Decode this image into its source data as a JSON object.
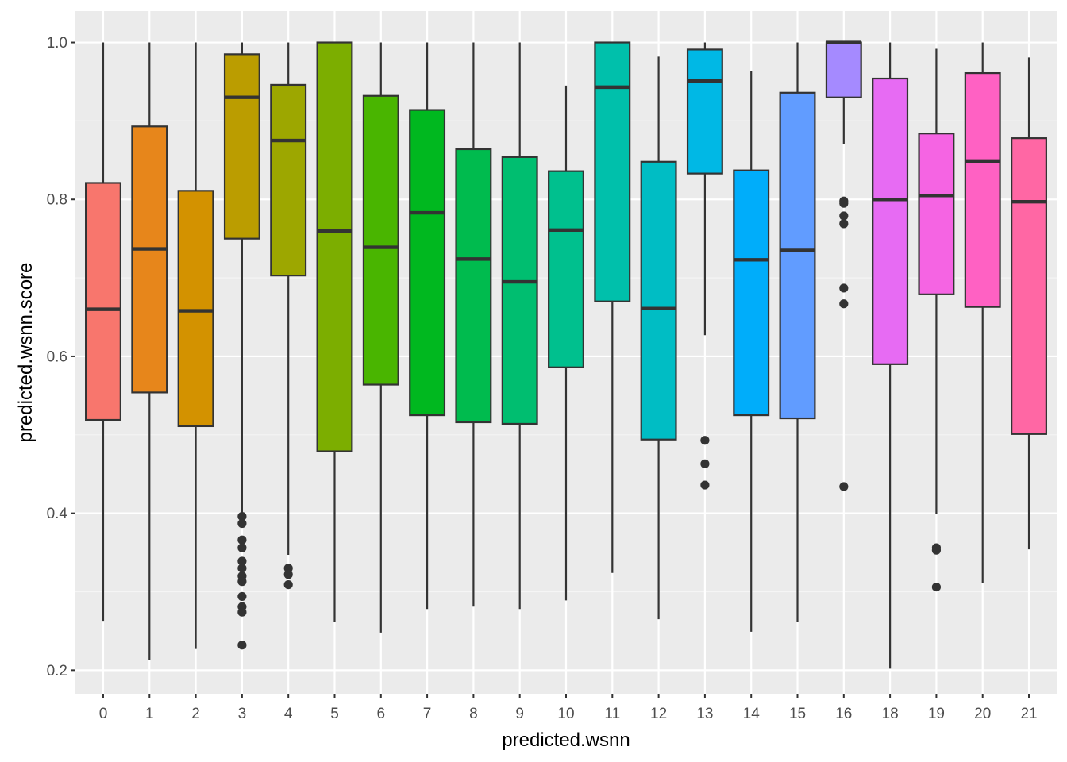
{
  "chart_data": {
    "type": "boxplot",
    "title": "",
    "xlabel": "predicted.wsnn",
    "ylabel": "predicted.wsnn.score",
    "ylim": [
      0.17,
      1.04
    ],
    "yticks": [
      0.2,
      0.4,
      0.6,
      0.8,
      1.0
    ],
    "ytick_labels": [
      "0.2",
      "0.4",
      "0.6",
      "0.8",
      "1.0"
    ],
    "grid": true,
    "legend": "none",
    "categories": [
      "0",
      "1",
      "2",
      "3",
      "4",
      "5",
      "6",
      "7",
      "8",
      "9",
      "10",
      "11",
      "12",
      "13",
      "14",
      "15",
      "16",
      "18",
      "19",
      "20",
      "21"
    ],
    "boxes": [
      {
        "label": "0",
        "color": "#F8766D",
        "lower_whisker": 0.263,
        "q1": 0.519,
        "median": 0.66,
        "q3": 0.821,
        "upper_whisker": 1.0,
        "outliers": []
      },
      {
        "label": "1",
        "color": "#E7861B",
        "lower_whisker": 0.213,
        "q1": 0.554,
        "median": 0.737,
        "q3": 0.893,
        "upper_whisker": 1.0,
        "outliers": []
      },
      {
        "label": "2",
        "color": "#D39200",
        "lower_whisker": 0.227,
        "q1": 0.511,
        "median": 0.658,
        "q3": 0.811,
        "upper_whisker": 1.0,
        "outliers": []
      },
      {
        "label": "3",
        "color": "#BB9D00",
        "lower_whisker": 0.399,
        "q1": 0.75,
        "median": 0.93,
        "q3": 0.985,
        "upper_whisker": 1.0,
        "outliers": [
          0.396,
          0.387,
          0.366,
          0.356,
          0.339,
          0.33,
          0.32,
          0.313,
          0.294,
          0.281,
          0.274,
          0.232
        ]
      },
      {
        "label": "4",
        "color": "#9DA700",
        "lower_whisker": 0.347,
        "q1": 0.703,
        "median": 0.875,
        "q3": 0.946,
        "upper_whisker": 1.0,
        "outliers": [
          0.33,
          0.322,
          0.309
        ]
      },
      {
        "label": "5",
        "color": "#7CAE00",
        "lower_whisker": 0.262,
        "q1": 0.479,
        "median": 0.76,
        "q3": 1.0,
        "upper_whisker": 1.0,
        "outliers": []
      },
      {
        "label": "6",
        "color": "#49B500",
        "lower_whisker": 0.248,
        "q1": 0.564,
        "median": 0.739,
        "q3": 0.932,
        "upper_whisker": 1.0,
        "outliers": []
      },
      {
        "label": "7",
        "color": "#00B81F",
        "lower_whisker": 0.278,
        "q1": 0.525,
        "median": 0.783,
        "q3": 0.914,
        "upper_whisker": 1.0,
        "outliers": []
      },
      {
        "label": "8",
        "color": "#00BB4E",
        "lower_whisker": 0.281,
        "q1": 0.516,
        "median": 0.724,
        "q3": 0.864,
        "upper_whisker": 1.0,
        "outliers": []
      },
      {
        "label": "9",
        "color": "#00BE70",
        "lower_whisker": 0.278,
        "q1": 0.514,
        "median": 0.695,
        "q3": 0.854,
        "upper_whisker": 1.0,
        "outliers": []
      },
      {
        "label": "10",
        "color": "#00C08E",
        "lower_whisker": 0.289,
        "q1": 0.586,
        "median": 0.761,
        "q3": 0.836,
        "upper_whisker": 0.945,
        "outliers": []
      },
      {
        "label": "11",
        "color": "#00C0AB",
        "lower_whisker": 0.324,
        "q1": 0.67,
        "median": 0.943,
        "q3": 1.0,
        "upper_whisker": 1.0,
        "outliers": []
      },
      {
        "label": "12",
        "color": "#00BDC4",
        "lower_whisker": 0.265,
        "q1": 0.494,
        "median": 0.661,
        "q3": 0.848,
        "upper_whisker": 0.982,
        "outliers": []
      },
      {
        "label": "13",
        "color": "#00B8E5",
        "lower_whisker": 0.627,
        "q1": 0.833,
        "median": 0.951,
        "q3": 0.991,
        "upper_whisker": 1.0,
        "outliers": [
          0.493,
          0.463,
          0.436
        ]
      },
      {
        "label": "14",
        "color": "#00ADFA",
        "lower_whisker": 0.249,
        "q1": 0.525,
        "median": 0.723,
        "q3": 0.837,
        "upper_whisker": 0.964,
        "outliers": []
      },
      {
        "label": "15",
        "color": "#619CFF",
        "lower_whisker": 0.262,
        "q1": 0.521,
        "median": 0.735,
        "q3": 0.936,
        "upper_whisker": 1.0,
        "outliers": []
      },
      {
        "label": "16",
        "color": "#A58AFF",
        "lower_whisker": 0.871,
        "q1": 0.93,
        "median": 1.0,
        "q3": 1.0,
        "upper_whisker": 1.0,
        "outliers": [
          0.798,
          0.795,
          0.779,
          0.769,
          0.687,
          0.667,
          0.434
        ]
      },
      {
        "label": "18",
        "color": "#E76BF3",
        "lower_whisker": 0.202,
        "q1": 0.59,
        "median": 0.8,
        "q3": 0.954,
        "upper_whisker": 1.0,
        "outliers": []
      },
      {
        "label": "19",
        "color": "#F564E3",
        "lower_whisker": 0.399,
        "q1": 0.679,
        "median": 0.805,
        "q3": 0.884,
        "upper_whisker": 0.992,
        "outliers": [
          0.356,
          0.353,
          0.306
        ]
      },
      {
        "label": "20",
        "color": "#FF61C3",
        "lower_whisker": 0.311,
        "q1": 0.663,
        "median": 0.849,
        "q3": 0.961,
        "upper_whisker": 1.0,
        "outliers": []
      },
      {
        "label": "21",
        "color": "#FF67A4",
        "lower_whisker": 0.354,
        "q1": 0.501,
        "median": 0.797,
        "q3": 0.878,
        "upper_whisker": 0.981,
        "outliers": []
      }
    ]
  }
}
